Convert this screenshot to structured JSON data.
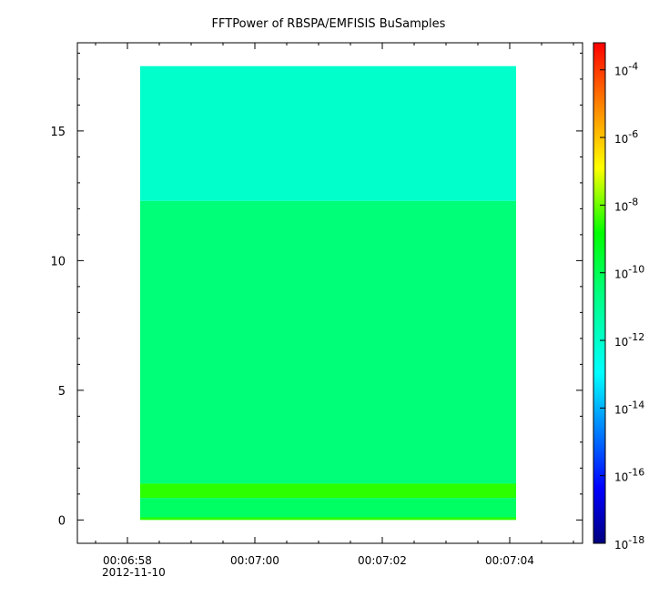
{
  "chart_data": {
    "type": "heatmap",
    "title": "FFTPower of RBSPA/EMFISIS  BuSamples",
    "xlabel": "",
    "ylabel": "",
    "x_date": "2012-11-10",
    "x_tick_labels": [
      "00:06:58",
      "00:07:00",
      "00:07:02",
      "00:07:04"
    ],
    "y_ticks": [
      0,
      5,
      10,
      15
    ],
    "y_tick_labels": [
      "0",
      "5",
      "10",
      "15"
    ],
    "ylim": [
      -0.9,
      18.4
    ],
    "data_extent": {
      "x_start": "00:06:58.2",
      "x_end": "00:07:04.1",
      "y_min": 0.0,
      "y_max": 17.5
    },
    "log_scale": true,
    "colorbar": {
      "position": "right",
      "range_exp": [
        -18,
        -3.2
      ],
      "ticks": [
        {
          "base": "10",
          "exp": "-4"
        },
        {
          "base": "10",
          "exp": "-6"
        },
        {
          "base": "10",
          "exp": "-8"
        },
        {
          "base": "10",
          "exp": "-10"
        },
        {
          "base": "10",
          "exp": "-12"
        },
        {
          "base": "10",
          "exp": "-14"
        },
        {
          "base": "10",
          "exp": "-16"
        },
        {
          "base": "10",
          "exp": "-18"
        }
      ]
    },
    "bands": [
      {
        "y_from": 12.3,
        "y_to": 17.5,
        "log_power": -12.0
      },
      {
        "y_from": 1.4,
        "y_to": 12.3,
        "log_power": -10.5
      },
      {
        "y_from": 0.85,
        "y_to": 1.4,
        "log_power": -8.5
      },
      {
        "y_from": 0.1,
        "y_to": 0.85,
        "log_power": -10.2
      },
      {
        "y_from": 0.0,
        "y_to": 0.1,
        "log_power": -8.5
      }
    ],
    "grid": false
  }
}
